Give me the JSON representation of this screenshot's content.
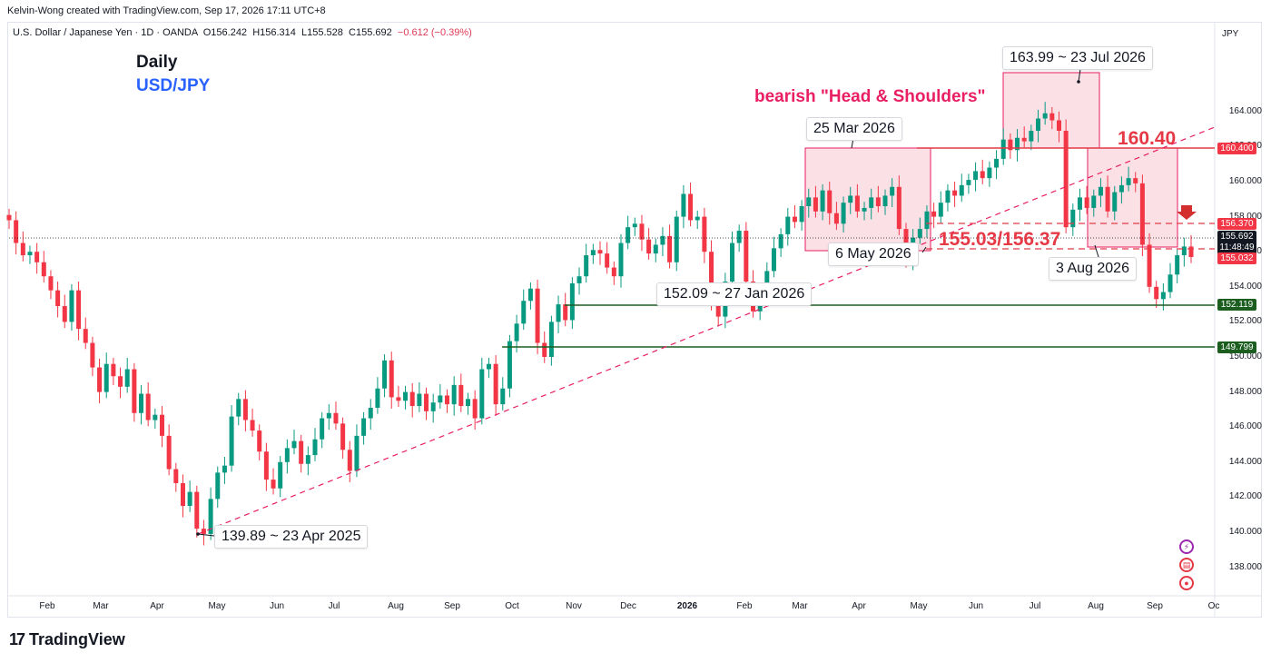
{
  "header": {
    "credit": "Kelvin-Wong created with TradingView.com, Sep 17, 2026 17:11 UTC+8",
    "symbol": "U.S. Dollar / Japanese Yen · 1D · OANDA",
    "open": "O156.242",
    "high": "H156.314",
    "low": "L155.528",
    "close": "C155.692",
    "change": "−0.612 (−0.39%)"
  },
  "branding": {
    "logo": "17",
    "name": "TradingView"
  },
  "currency": "JPY",
  "chart_data": {
    "type": "candlestick",
    "title": "Daily",
    "subtitle": "USD/JPY",
    "pattern_label": "bearish \"Head & Shoulders\"",
    "ylim": [
      136.8,
      166.6
    ],
    "y_ticks": [
      "138.000",
      "140.000",
      "142.000",
      "144.000",
      "146.000",
      "148.000",
      "150.000",
      "152.000",
      "154.000",
      "156.000",
      "158.000",
      "160.000",
      "162.000",
      "164.000"
    ],
    "x_ticks": [
      "Feb",
      "Mar",
      "Apr",
      "May",
      "Jun",
      "Jul",
      "Aug",
      "Sep",
      "Oct",
      "Nov",
      "Dec",
      "2026",
      "Feb",
      "Mar",
      "Apr",
      "May",
      "Jun",
      "Jul",
      "Aug",
      "Sep",
      "Oc"
    ],
    "series_close": [
      157.8,
      156.5,
      155.8,
      156.0,
      155.4,
      154.6,
      153.8,
      152.9,
      152.0,
      153.8,
      151.6,
      150.8,
      149.4,
      148.0,
      149.6,
      148.9,
      148.3,
      149.3,
      146.8,
      147.9,
      146.4,
      146.7,
      145.5,
      143.6,
      142.8,
      141.5,
      142.3,
      140.2,
      139.9,
      141.9,
      143.4,
      143.8,
      146.6,
      147.6,
      146.4,
      145.8,
      144.6,
      143.0,
      142.5,
      144.0,
      144.8,
      145.2,
      143.9,
      144.4,
      145.3,
      146.5,
      146.8,
      146.2,
      144.7,
      143.5,
      145.5,
      146.5,
      147.1,
      148.2,
      149.8,
      147.7,
      147.5,
      148.0,
      147.2,
      147.9,
      146.9,
      147.4,
      147.8,
      147.3,
      148.4,
      147.2,
      147.6,
      146.5,
      149.3,
      149.6,
      147.3,
      148.2,
      150.9,
      151.9,
      153.2,
      153.9,
      150.8,
      150.0,
      152.0,
      153.0,
      152.1,
      154.2,
      154.6,
      155.8,
      156.1,
      155.9,
      155.1,
      154.6,
      156.5,
      157.4,
      157.6,
      156.7,
      155.9,
      156.4,
      156.9,
      155.4,
      158.0,
      159.3,
      157.8,
      158.0,
      156.0,
      153.0,
      152.3,
      154.3,
      156.5,
      157.2,
      154.3,
      152.6,
      153.9,
      154.9,
      156.2,
      157.0,
      158.0,
      157.7,
      158.6,
      159.1,
      158.3,
      159.5,
      158.2,
      157.6,
      158.8,
      159.2,
      158.3,
      158.5,
      159.1,
      158.6,
      159.2,
      159.7,
      157.3,
      155.6,
      156.8,
      157.3,
      158.3,
      158.0,
      158.8,
      159.5,
      159.2,
      159.8,
      160.1,
      160.6,
      160.2,
      160.8,
      161.3,
      162.4,
      161.8,
      162.5,
      162.3,
      162.9,
      163.6,
      163.9,
      163.5,
      162.9,
      157.4,
      158.4,
      159.1,
      158.5,
      159.2,
      159.7,
      158.3,
      159.4,
      159.8,
      160.2,
      159.9,
      156.4,
      154.0,
      153.3,
      153.7,
      154.7,
      155.8,
      156.3,
      155.7
    ],
    "callouts": {
      "low_2025": "139.89 ~ 23 Apr 2025",
      "jan_low": "152.09 ~ 27 Jan 2026",
      "mar_high": "25 Mar 2026",
      "may_low": "6 May 2026",
      "jul_high": "163.99 ~ 23 Jul 2026",
      "aug_low": "3 Aug 2026"
    },
    "levels": {
      "neckline_range": "155.03/156.37",
      "resistance": "160.40"
    },
    "price_tags": {
      "p160": "160.400",
      "p156": "156.370",
      "last": "155.692",
      "countdown": "11:48:49",
      "p155": "155.032",
      "p152": "152.119",
      "p149": "149.799"
    },
    "colors": {
      "up": "#089981",
      "down": "#f23645",
      "accent": "#e91e63",
      "support": "#1b5e20",
      "zone": "#f7c6d2"
    }
  }
}
